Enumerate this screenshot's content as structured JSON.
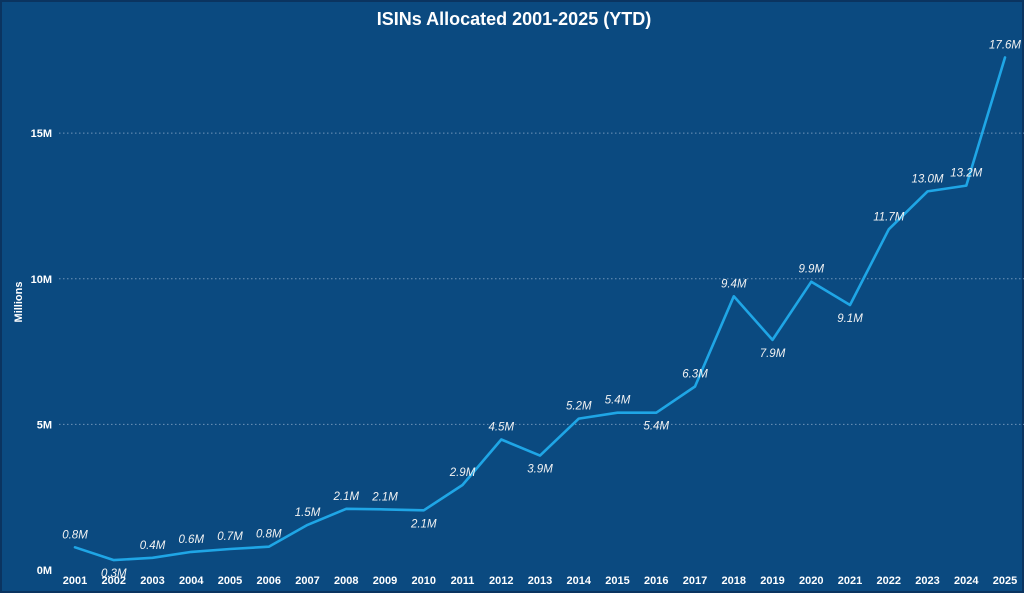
{
  "colors": {
    "background": "#0b4a80",
    "line": "#1fa6e6",
    "text": "#ffffff"
  },
  "chart_data": {
    "type": "line",
    "title": "ISINs Allocated 2001-2025 (YTD)",
    "xlabel": "",
    "ylabel": "Millions",
    "ylim": [
      0,
      18.2
    ],
    "yticks": [
      0,
      5,
      10,
      15
    ],
    "ytick_labels": [
      "0M",
      "5M",
      "10M",
      "15M"
    ],
    "grid": true,
    "categories": [
      "2001",
      "2002",
      "2003",
      "2004",
      "2005",
      "2006",
      "2007",
      "2008",
      "2009",
      "2010",
      "2011",
      "2012",
      "2013",
      "2014",
      "2015",
      "2016",
      "2017",
      "2018",
      "2019",
      "2020",
      "2021",
      "2022",
      "2023",
      "2024",
      "2025"
    ],
    "series": [
      {
        "name": "ISINs Allocated",
        "values": [
          0.78,
          0.34,
          0.42,
          0.62,
          0.72,
          0.8,
          1.55,
          2.1,
          2.08,
          2.05,
          2.92,
          4.48,
          3.93,
          5.2,
          5.4,
          5.4,
          6.3,
          9.4,
          7.9,
          9.9,
          9.1,
          11.7,
          13.0,
          13.2,
          17.6
        ],
        "labels": [
          "0.8M",
          "0.3M",
          "0.4M",
          "0.6M",
          "0.7M",
          "0.8M",
          "1.5M",
          "2.1M",
          "2.1M",
          "2.1M",
          "2.9M",
          "4.5M",
          "3.9M",
          "5.2M",
          "5.4M",
          "5.4M",
          "6.3M",
          "9.4M",
          "7.9M",
          "9.9M",
          "9.1M",
          "11.7M",
          "13.0M",
          "13.2M",
          "17.6M"
        ],
        "label_positions": [
          "above",
          "below",
          "above",
          "above",
          "above",
          "above",
          "above",
          "above",
          "above",
          "below",
          "above",
          "above",
          "below",
          "above",
          "above",
          "below",
          "above",
          "above",
          "below",
          "above",
          "below",
          "above",
          "above",
          "above",
          "above"
        ]
      }
    ]
  }
}
